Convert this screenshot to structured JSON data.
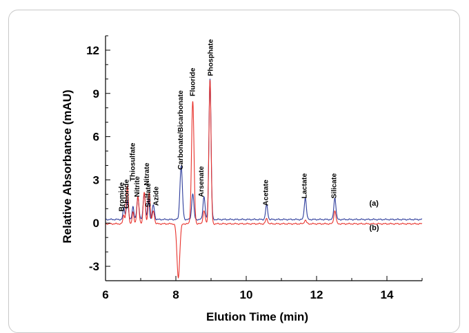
{
  "chart_data": {
    "type": "line",
    "xlabel": "Elution Time (min)",
    "ylabel": "Relative Absorbance (mAU)",
    "xlim": [
      6,
      15
    ],
    "ylim": [
      -4,
      13
    ],
    "x_ticks": [
      6,
      8,
      10,
      12,
      14
    ],
    "y_ticks": [
      -3,
      0,
      3,
      6,
      9,
      12
    ],
    "grid": false,
    "baselines": {
      "a": 0.25,
      "b": -0.05
    },
    "series": [
      {
        "name": "(a)",
        "color": "#2b3a9a",
        "baseline": 0.25,
        "peaks": [
          [
            6.52,
            0.8,
            0.025
          ],
          [
            6.62,
            1.3,
            0.03
          ],
          [
            6.78,
            0.9,
            0.025
          ],
          [
            6.92,
            1.6,
            0.03
          ],
          [
            7.1,
            1.8,
            0.03
          ],
          [
            7.22,
            1.5,
            0.025
          ],
          [
            7.36,
            1.0,
            0.03
          ],
          [
            8.15,
            3.7,
            0.035
          ],
          [
            8.48,
            1.8,
            0.03
          ],
          [
            8.8,
            1.6,
            0.03
          ],
          [
            8.97,
            9.8,
            0.03
          ],
          [
            10.58,
            1.0,
            0.03
          ],
          [
            11.68,
            1.5,
            0.03
          ],
          [
            12.52,
            1.5,
            0.03
          ]
        ]
      },
      {
        "name": "(b)",
        "color": "#e8302a",
        "baseline": -0.05,
        "peaks": [
          [
            6.52,
            0.6,
            0.025
          ],
          [
            6.62,
            2.6,
            0.03
          ],
          [
            6.78,
            0.8,
            0.025
          ],
          [
            6.92,
            1.9,
            0.03
          ],
          [
            7.1,
            2.2,
            0.03
          ],
          [
            7.24,
            2.2,
            0.03
          ],
          [
            7.36,
            0.9,
            0.03
          ],
          [
            8.07,
            -3.7,
            0.04
          ],
          [
            8.48,
            8.5,
            0.035
          ],
          [
            8.8,
            0.9,
            0.03
          ],
          [
            8.97,
            10.0,
            0.03
          ],
          [
            10.58,
            0.35,
            0.03
          ],
          [
            11.68,
            0.25,
            0.03
          ],
          [
            12.52,
            0.9,
            0.03
          ]
        ]
      }
    ],
    "peak_labels": [
      {
        "text": "Bromide",
        "x": 6.52,
        "y": 0.8
      },
      {
        "text": "Chloride",
        "x": 6.66,
        "y": 1.0
      },
      {
        "text": "Thiosulfate",
        "x": 6.83,
        "y": 2.9
      },
      {
        "text": "Nitrite",
        "x": 6.96,
        "y": 1.8
      },
      {
        "text": "Nitrate",
        "x": 7.24,
        "y": 2.6
      },
      {
        "text": "Sulfate",
        "x": 7.27,
        "y": 1.1
      },
      {
        "text": "Azide",
        "x": 7.5,
        "y": 1.2
      },
      {
        "text": "Carbonate/Bicarbonate",
        "x": 8.2,
        "y": 3.7
      },
      {
        "text": "Fluoride",
        "x": 8.54,
        "y": 8.8
      },
      {
        "text": "Arsenate",
        "x": 8.78,
        "y": 1.8
      },
      {
        "text": "Phosphate",
        "x": 9.05,
        "y": 10.2
      },
      {
        "text": "Acetate",
        "x": 10.62,
        "y": 1.2
      },
      {
        "text": "Lactate",
        "x": 11.72,
        "y": 1.7
      },
      {
        "text": "Silicate",
        "x": 12.56,
        "y": 1.7
      }
    ],
    "trace_labels": [
      {
        "text": "(a)",
        "x": 13.5,
        "y": 1.2
      },
      {
        "text": "(b)",
        "x": 13.5,
        "y": -0.5
      }
    ]
  }
}
